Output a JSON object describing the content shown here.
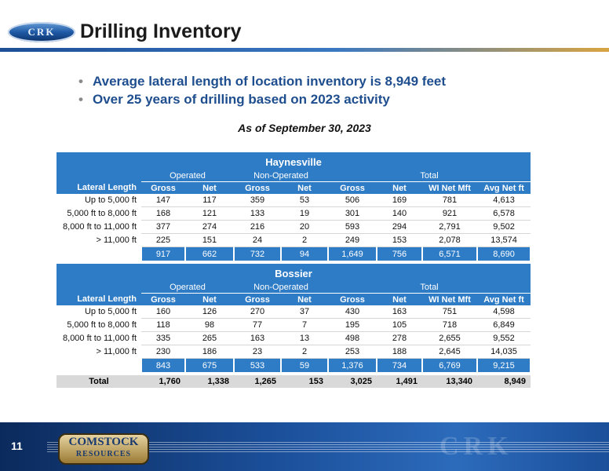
{
  "header": {
    "logo_text": "CRK",
    "title": "Drilling Inventory"
  },
  "bullets": [
    "Average lateral length of location inventory is 8,949 feet",
    "Over 25 years of drilling based on 2023 activity"
  ],
  "as_of": "As of September 30, 2023",
  "group_labels": {
    "operated": "Operated",
    "non_operated": "Non-Operated",
    "total": "Total"
  },
  "columns": [
    "Lateral Length",
    "Gross",
    "Net",
    "Gross",
    "Net",
    "Gross",
    "Net",
    "WI Net Mft",
    "Avg Net ft"
  ],
  "tables": [
    {
      "title": "Haynesville",
      "rows": [
        [
          "Up to 5,000 ft",
          "147",
          "117",
          "359",
          "53",
          "506",
          "169",
          "781",
          "4,613"
        ],
        [
          "5,000 ft to 8,000 ft",
          "168",
          "121",
          "133",
          "19",
          "301",
          "140",
          "921",
          "6,578"
        ],
        [
          "8,000 ft to 11,000 ft",
          "377",
          "274",
          "216",
          "20",
          "593",
          "294",
          "2,791",
          "9,502"
        ],
        [
          "> 11,000 ft",
          "225",
          "151",
          "24",
          "2",
          "249",
          "153",
          "2,078",
          "13,574"
        ]
      ],
      "subtotal": [
        "917",
        "662",
        "732",
        "94",
        "1,649",
        "756",
        "6,571",
        "8,690"
      ]
    },
    {
      "title": "Bossier",
      "rows": [
        [
          "Up to 5,000 ft",
          "160",
          "126",
          "270",
          "37",
          "430",
          "163",
          "751",
          "4,598"
        ],
        [
          "5,000 ft to 8,000 ft",
          "118",
          "98",
          "77",
          "7",
          "195",
          "105",
          "718",
          "6,849"
        ],
        [
          "8,000 ft to 11,000 ft",
          "335",
          "265",
          "163",
          "13",
          "498",
          "278",
          "2,655",
          "9,552"
        ],
        [
          "> 11,000 ft",
          "230",
          "186",
          "23",
          "2",
          "253",
          "188",
          "2,645",
          "14,035"
        ]
      ],
      "subtotal": [
        "843",
        "675",
        "533",
        "59",
        "1,376",
        "734",
        "6,769",
        "9,215"
      ]
    }
  ],
  "grand_total": {
    "label": "Total",
    "values": [
      "1,760",
      "1,338",
      "1,265",
      "153",
      "3,025",
      "1,491",
      "13,340",
      "8,949"
    ]
  },
  "footer": {
    "page_number": "11",
    "brand_line1": "COMSTOCK",
    "brand_line2": "RESOURCES",
    "watermark": "CRK"
  }
}
